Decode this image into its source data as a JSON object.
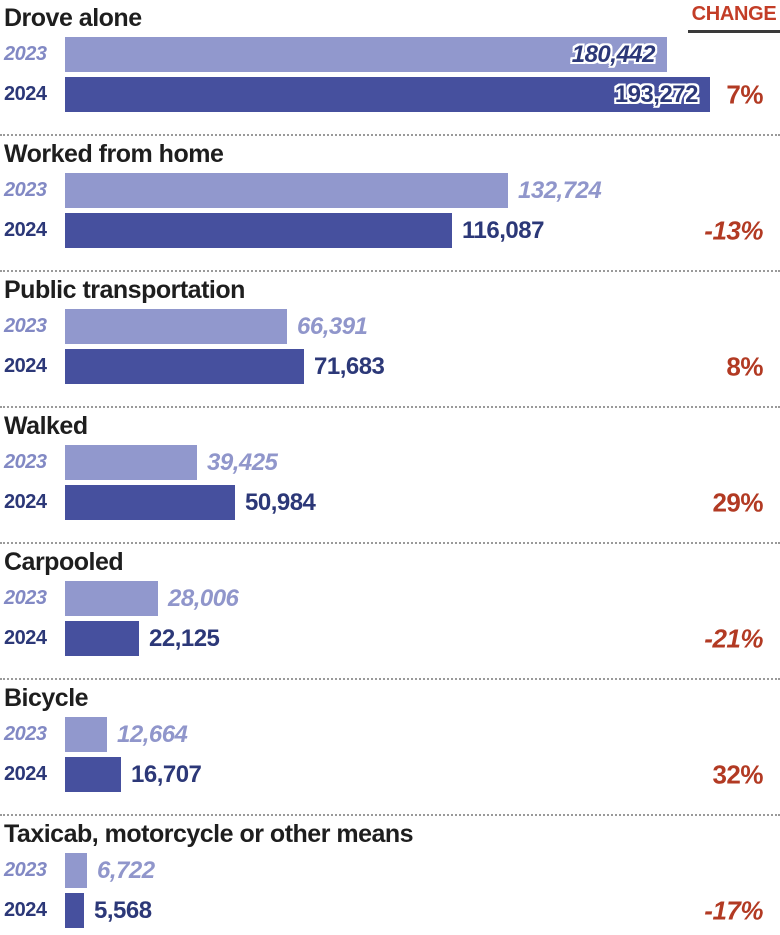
{
  "chart_data": {
    "type": "bar",
    "orientation": "horizontal",
    "title": "",
    "series_labels": [
      "2023",
      "2024"
    ],
    "change_header": "CHANGE",
    "x_max": 193272,
    "grid": false,
    "legend_position": "row-labels-left",
    "categories": [
      {
        "name": "Drove alone",
        "value_2023": 180442,
        "value_2024": 193272,
        "label_2023": "180,442",
        "label_2024": "193,272",
        "change": "7%",
        "labels_inside": true
      },
      {
        "name": "Worked from home",
        "value_2023": 132724,
        "value_2024": 116087,
        "label_2023": "132,724",
        "label_2024": "116,087",
        "change": "-13%",
        "labels_inside": false
      },
      {
        "name": "Public transportation",
        "value_2023": 66391,
        "value_2024": 71683,
        "label_2023": "66,391",
        "label_2024": "71,683",
        "change": "8%",
        "labels_inside": false
      },
      {
        "name": "Walked",
        "value_2023": 39425,
        "value_2024": 50984,
        "label_2023": "39,425",
        "label_2024": "50,984",
        "change": "29%",
        "labels_inside": false
      },
      {
        "name": "Carpooled",
        "value_2023": 28006,
        "value_2024": 22125,
        "label_2023": "28,006",
        "label_2024": "22,125",
        "change": "-21%",
        "labels_inside": false
      },
      {
        "name": "Bicycle",
        "value_2023": 12664,
        "value_2024": 16707,
        "label_2023": "12,664",
        "label_2024": "16,707",
        "change": "32%",
        "labels_inside": false
      },
      {
        "name": "Taxicab, motorcycle or other means",
        "value_2023": 6722,
        "value_2024": 5568,
        "label_2023": "6,722",
        "label_2024": "5,568",
        "change": "-17%",
        "labels_inside": false
      }
    ],
    "colors": {
      "bar_2023": "#9198cd",
      "bar_2024": "#46509e",
      "year_2023_text": "#8289c4",
      "value_2023_text": "#9096cb",
      "text_2024": "#2c3878",
      "change_text": "#b23a23",
      "change_header_text": "#c33d27",
      "title_text": "#1e1e1e",
      "separator": "#9a9a9a"
    }
  }
}
